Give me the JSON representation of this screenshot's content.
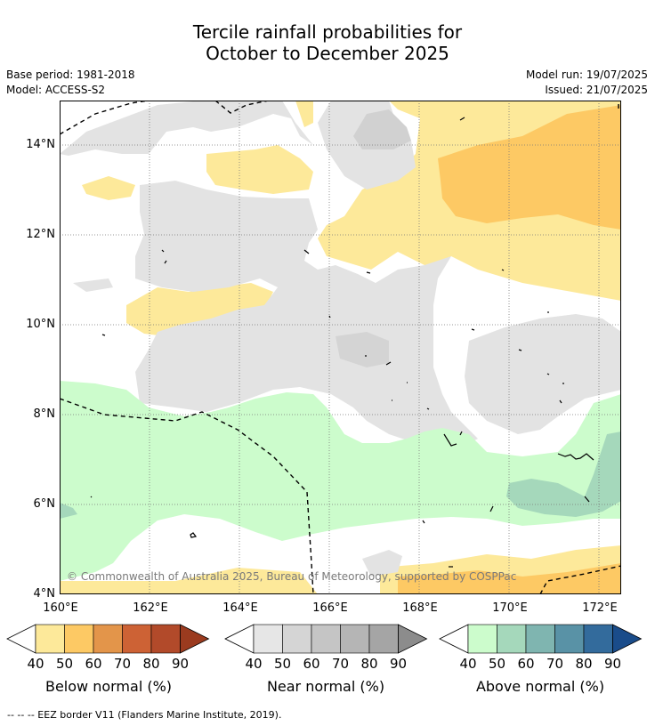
{
  "title": {
    "line1": "Tercile rainfall probabilities for",
    "line2": "October to December 2025"
  },
  "meta": {
    "base_period": "Base period: 1981-2018",
    "model": "Model: ACCESS-S2",
    "model_run": "Model run: 19/07/2025",
    "issued": "Issued: 21/07/2025"
  },
  "map": {
    "lat_ticks": [
      "14°N",
      "12°N",
      "10°N",
      "8°N",
      "6°N",
      "4°N"
    ],
    "lon_ticks": [
      "160°E",
      "162°E",
      "164°E",
      "166°E",
      "168°E",
      "170°E",
      "172°E"
    ],
    "copyright": "© Commonwealth of Australia 2025, Bureau of Meteorology, supported by COSPPac"
  },
  "legends": [
    {
      "title": "Below normal (%)",
      "ticks": [
        "40",
        "50",
        "60",
        "70",
        "80",
        "90"
      ],
      "colors": [
        "#fde99a",
        "#fdc964",
        "#e3954a",
        "#cd6235",
        "#b24a2a",
        "#9b3b1f"
      ]
    },
    {
      "title": "Near normal (%)",
      "ticks": [
        "40",
        "50",
        "60",
        "70",
        "80",
        "90"
      ],
      "colors": [
        "#e6e6e6",
        "#d5d5d5",
        "#c5c5c5",
        "#b5b5b5",
        "#a5a5a5",
        "#8c8c8c"
      ]
    },
    {
      "title": "Above normal (%)",
      "ticks": [
        "40",
        "50",
        "60",
        "70",
        "80",
        "90"
      ],
      "colors": [
        "#ccfccc",
        "#a5d8bb",
        "#7fb5b0",
        "#5992a6",
        "#336b9c",
        "#1a4c8a"
      ]
    }
  ],
  "footer": "--  --  -- EEZ border V11 (Flanders Marine Institute, 2019)."
}
